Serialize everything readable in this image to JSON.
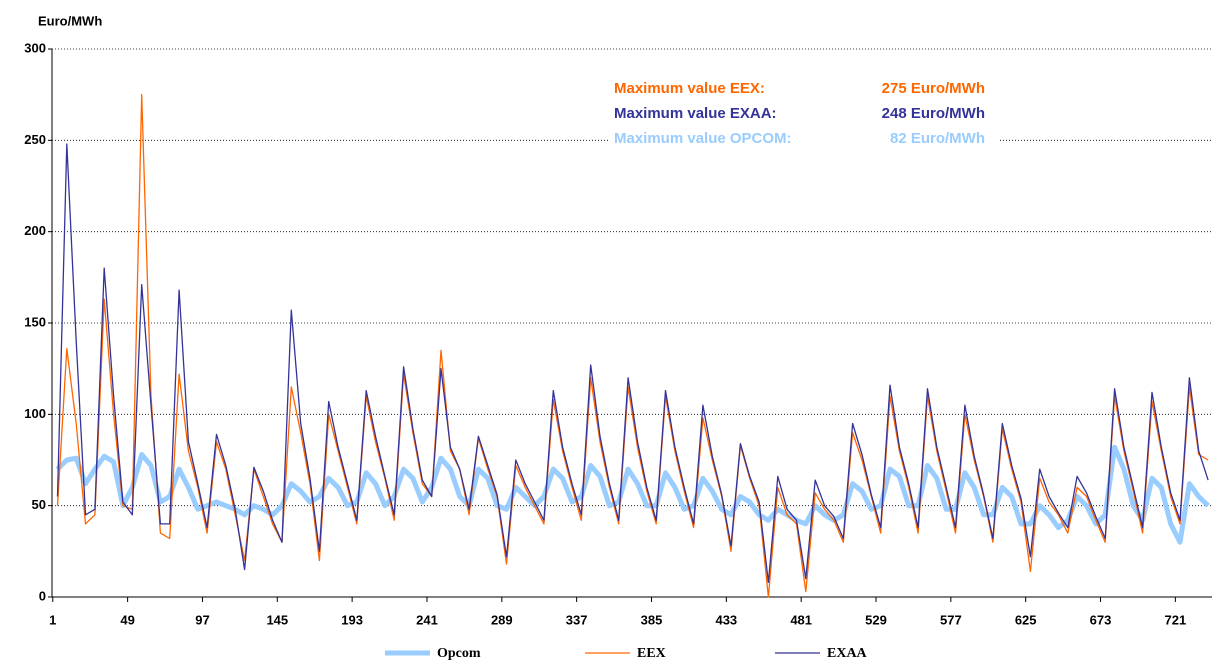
{
  "chart_data": {
    "type": "line",
    "y_label": "Euro/MWh",
    "xlim": [
      0.5,
      744.5
    ],
    "xticks": [
      1,
      49,
      97,
      145,
      193,
      241,
      289,
      337,
      385,
      433,
      481,
      529,
      577,
      625,
      673,
      721
    ],
    "ylim": [
      0,
      300
    ],
    "yticks": [
      0,
      50,
      100,
      150,
      200,
      250,
      300
    ],
    "grid": true,
    "legend": "bottom",
    "x": [
      4,
      10,
      16,
      22,
      28,
      34,
      40,
      46,
      52,
      58,
      64,
      70,
      76,
      82,
      88,
      94,
      100,
      106,
      112,
      118,
      124,
      130,
      136,
      142,
      148,
      154,
      160,
      166,
      172,
      178,
      184,
      190,
      196,
      202,
      208,
      214,
      220,
      226,
      232,
      238,
      244,
      250,
      256,
      262,
      268,
      274,
      280,
      286,
      292,
      298,
      304,
      310,
      316,
      322,
      328,
      334,
      340,
      346,
      352,
      358,
      364,
      370,
      376,
      382,
      388,
      394,
      400,
      406,
      412,
      418,
      424,
      430,
      436,
      442,
      448,
      454,
      460,
      466,
      472,
      478,
      484,
      490,
      496,
      502,
      508,
      514,
      520,
      526,
      532,
      538,
      544,
      550,
      556,
      562,
      568,
      574,
      580,
      586,
      592,
      598,
      604,
      610,
      616,
      622,
      628,
      634,
      640,
      646,
      652,
      658,
      664,
      670,
      676,
      682,
      688,
      694,
      700,
      706,
      712,
      718,
      724,
      730,
      736,
      742
    ],
    "series": [
      {
        "name": "Opcom",
        "color": "#99ccff",
        "width": 5,
        "values": [
          70,
          75,
          76,
          62,
          70,
          77,
          74,
          50,
          60,
          78,
          72,
          52,
          55,
          70,
          60,
          48,
          50,
          52,
          50,
          48,
          45,
          50,
          48,
          45,
          50,
          62,
          58,
          52,
          55,
          65,
          60,
          50,
          52,
          68,
          62,
          50,
          55,
          70,
          65,
          52,
          60,
          76,
          70,
          55,
          50,
          70,
          65,
          50,
          48,
          60,
          55,
          50,
          55,
          70,
          65,
          52,
          55,
          72,
          66,
          50,
          52,
          70,
          62,
          50,
          50,
          68,
          60,
          48,
          50,
          65,
          58,
          48,
          45,
          55,
          52,
          45,
          42,
          48,
          45,
          42,
          40,
          50,
          45,
          42,
          45,
          62,
          58,
          48,
          50,
          70,
          66,
          50,
          50,
          72,
          65,
          48,
          48,
          68,
          60,
          45,
          45,
          60,
          55,
          40,
          40,
          50,
          45,
          38,
          42,
          55,
          50,
          40,
          45,
          82,
          70,
          50,
          42,
          65,
          60,
          40,
          30,
          62,
          55,
          50
        ]
      },
      {
        "name": "EEX",
        "color": "#ff6600",
        "width": 1.3,
        "values": [
          50,
          136,
          95,
          40,
          45,
          163,
          100,
          50,
          48,
          275,
          110,
          35,
          32,
          122,
          80,
          60,
          35,
          85,
          70,
          45,
          20,
          70,
          55,
          40,
          30,
          115,
          90,
          62,
          20,
          100,
          80,
          60,
          40,
          110,
          85,
          65,
          42,
          122,
          90,
          62,
          55,
          135,
          80,
          70,
          45,
          87,
          70,
          55,
          18,
          72,
          60,
          50,
          40,
          108,
          80,
          60,
          42,
          120,
          85,
          60,
          40,
          115,
          82,
          58,
          40,
          110,
          80,
          58,
          38,
          98,
          75,
          55,
          25,
          83,
          65,
          50,
          0,
          60,
          45,
          40,
          3,
          57,
          48,
          42,
          30,
          90,
          75,
          55,
          35,
          110,
          80,
          60,
          35,
          110,
          80,
          58,
          35,
          100,
          75,
          55,
          30,
          92,
          70,
          52,
          14,
          65,
          52,
          45,
          35,
          60,
          55,
          42,
          30,
          110,
          80,
          58,
          35,
          107,
          80,
          55,
          40,
          115,
          78,
          75
        ]
      },
      {
        "name": "EXAA",
        "color": "#333399",
        "width": 1.3,
        "values": [
          55,
          248,
          140,
          45,
          48,
          180,
          110,
          52,
          45,
          171,
          105,
          40,
          40,
          168,
          85,
          62,
          38,
          89,
          72,
          48,
          15,
          71,
          58,
          42,
          30,
          157,
          95,
          65,
          25,
          107,
          82,
          62,
          42,
          113,
          88,
          66,
          45,
          126,
          92,
          64,
          55,
          125,
          82,
          70,
          48,
          88,
          72,
          56,
          22,
          75,
          62,
          52,
          42,
          113,
          82,
          62,
          45,
          127,
          88,
          62,
          42,
          120,
          85,
          60,
          42,
          113,
          82,
          60,
          40,
          105,
          77,
          56,
          28,
          84,
          66,
          52,
          8,
          66,
          48,
          42,
          10,
          64,
          50,
          44,
          32,
          95,
          78,
          56,
          38,
          116,
          82,
          62,
          38,
          114,
          82,
          60,
          38,
          105,
          77,
          56,
          32,
          95,
          72,
          54,
          22,
          70,
          55,
          46,
          38,
          66,
          57,
          44,
          32,
          114,
          82,
          60,
          38,
          112,
          82,
          57,
          42,
          120,
          80,
          64
        ]
      }
    ],
    "annotations": [
      {
        "label": "Maximum value EEX:",
        "value": "275 Euro/MWh",
        "color": "#ff6600"
      },
      {
        "label": "Maximum value EXAA:",
        "value": "248 Euro/MWh",
        "color": "#333399"
      },
      {
        "label": "Maximum value OPCOM:",
        "value": "82 Euro/MWh",
        "color": "#99ccff"
      }
    ]
  }
}
